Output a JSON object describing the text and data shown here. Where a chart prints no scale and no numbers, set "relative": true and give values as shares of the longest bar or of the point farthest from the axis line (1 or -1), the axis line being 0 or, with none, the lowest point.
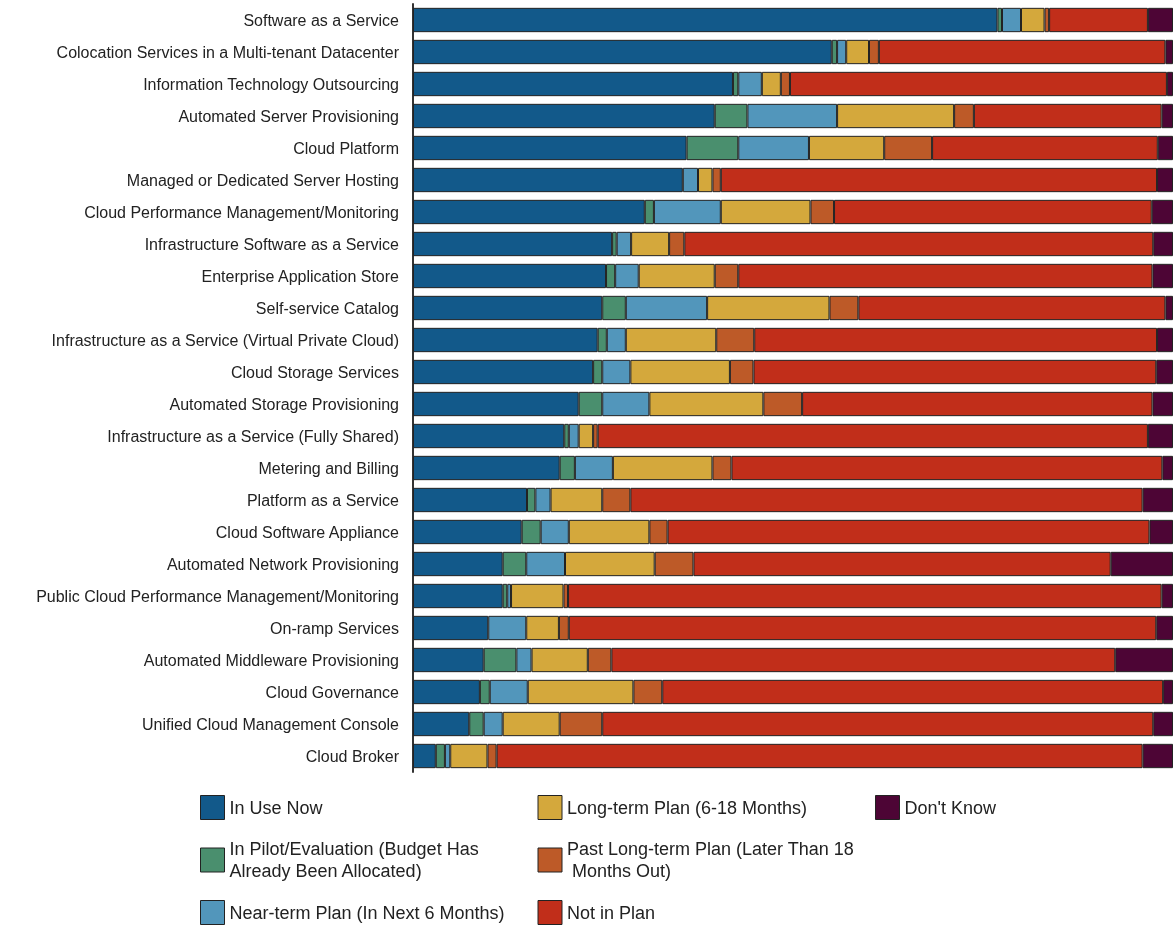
{
  "chart_data": {
    "type": "bar",
    "orientation": "horizontal",
    "stacked": true,
    "relative": true,
    "legend": "bottom",
    "categories": [
      "Software as a Service",
      "Colocation Services in a Multi-tenant Datacenter",
      "Information Technology Outsourcing",
      "Automated Server Provisioning",
      "Cloud Platform",
      "Managed or Dedicated Server Hosting",
      "Cloud Performance Management/Monitoring",
      "Infrastructure Software as a Service",
      "Enterprise Application Store",
      "Self-service Catalog",
      "Infrastructure as a Service (Virtual Private Cloud)",
      "Cloud Storage Services",
      "Automated Storage Provisioning",
      "Infrastructure as a Service (Fully Shared)",
      "Metering and Billing",
      "Platform as a Service",
      "Cloud Software Appliance",
      "Automated Network Provisioning",
      "Public Cloud Performance Management/Monitoring",
      "On-ramp Services",
      "Automated Middleware Provisioning",
      "Cloud Governance",
      "Unified Cloud Management Console",
      "Cloud Broker"
    ],
    "series": [
      {
        "name": "In Use Now",
        "color": "#12598a",
        "values": [
          0.769,
          0.551,
          0.421,
          0.397,
          0.36,
          0.355,
          0.305,
          0.262,
          0.254,
          0.249,
          0.243,
          0.237,
          0.218,
          0.199,
          0.193,
          0.15,
          0.143,
          0.118,
          0.118,
          0.099,
          0.093,
          0.088,
          0.074,
          0.03
        ]
      },
      {
        "name": "In Pilot/Evaluation (Budget Has Already Been Allocated)",
        "color": "#4a8f6e",
        "values": [
          0.006,
          0.007,
          0.007,
          0.043,
          0.068,
          0,
          0.012,
          0.006,
          0.012,
          0.031,
          0.012,
          0.012,
          0.031,
          0.006,
          0.02,
          0.011,
          0.025,
          0.031,
          0.006,
          0,
          0.043,
          0.013,
          0.019,
          0.012
        ]
      },
      {
        "name": "Near-term Plan (In Next 6 Months)",
        "color": "#5296bb",
        "values": [
          0.025,
          0.012,
          0.031,
          0.118,
          0.093,
          0.02,
          0.088,
          0.019,
          0.031,
          0.107,
          0.025,
          0.037,
          0.062,
          0.013,
          0.05,
          0.02,
          0.037,
          0.051,
          0.005,
          0.05,
          0.02,
          0.05,
          0.025,
          0.007
        ]
      },
      {
        "name": "Long-term Plan (6-18 Months)",
        "color": "#d4a83c",
        "values": [
          0.031,
          0.03,
          0.025,
          0.154,
          0.099,
          0.019,
          0.118,
          0.05,
          0.1,
          0.161,
          0.119,
          0.131,
          0.15,
          0.019,
          0.131,
          0.068,
          0.106,
          0.118,
          0.069,
          0.043,
          0.074,
          0.139,
          0.075,
          0.049
        ]
      },
      {
        "name": "Past Long-term Plan (Later Than 18 Months Out)",
        "color": "#bd5a28",
        "values": [
          0.006,
          0.013,
          0.012,
          0.026,
          0.063,
          0.011,
          0.031,
          0.02,
          0.031,
          0.038,
          0.05,
          0.031,
          0.051,
          0.006,
          0.025,
          0.037,
          0.024,
          0.051,
          0.006,
          0.013,
          0.031,
          0.038,
          0.056,
          0.012
        ]
      },
      {
        "name": "Not in Plan",
        "color": "#c12e1a",
        "values": [
          0.13,
          0.377,
          0.496,
          0.247,
          0.297,
          0.574,
          0.418,
          0.617,
          0.545,
          0.404,
          0.53,
          0.53,
          0.461,
          0.724,
          0.567,
          0.674,
          0.634,
          0.549,
          0.781,
          0.773,
          0.663,
          0.659,
          0.725,
          0.85
        ]
      },
      {
        "name": "Don't Know",
        "color": "#4d0535",
        "values": [
          0.033,
          0.01,
          0.008,
          0.015,
          0.02,
          0.021,
          0.028,
          0.026,
          0.027,
          0.01,
          0.021,
          0.022,
          0.027,
          0.033,
          0.014,
          0.04,
          0.031,
          0.082,
          0.015,
          0.022,
          0.076,
          0.013,
          0.026,
          0.04
        ]
      }
    ]
  }
}
